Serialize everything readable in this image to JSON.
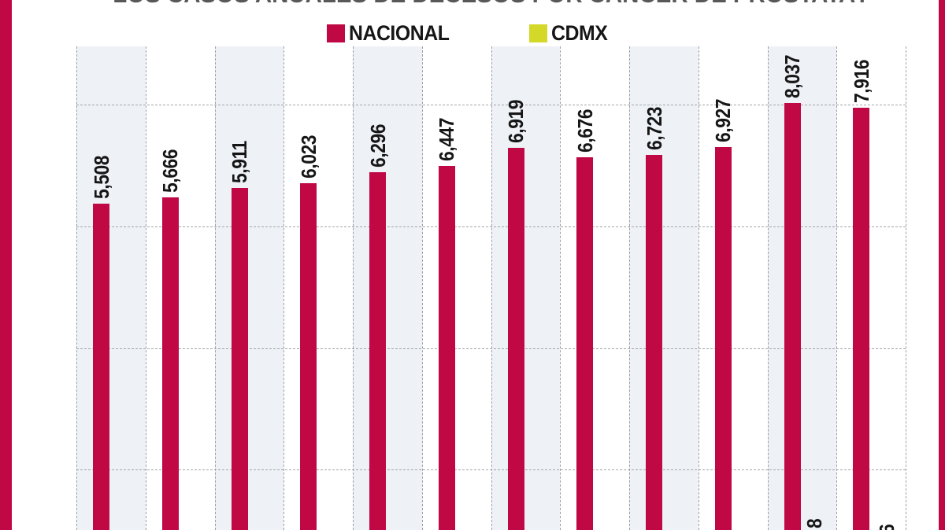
{
  "title": "LOS CASOS ANUALES DE DECESOS POR CÁNCER DE PRÓSTATA?",
  "legend": {
    "items": [
      {
        "label": "NACIONAL",
        "color": "#c00845"
      },
      {
        "label": "CDMX",
        "color": "#d4d829"
      }
    ]
  },
  "colors": {
    "nacional_bar": "#c00845",
    "cdmx_swatch": "#d4d829",
    "band_shade": "#eef1f6",
    "side_border": "#c00845",
    "title_text": "#58585b",
    "label_text": "#161616"
  },
  "chart_data": {
    "type": "bar",
    "title": "LOS CASOS ANUALES DE DECESOS POR CÁNCER DE PRÓSTATA?",
    "legend_position": "top",
    "grid": "dashed",
    "x_axis_labels_visible": false,
    "baseline_cut_off_below_view": true,
    "series": [
      {
        "name": "NACIONAL",
        "color": "#c00845",
        "values": [
          5508,
          5666,
          5911,
          6023,
          6296,
          6447,
          6919,
          6676,
          6723,
          6927,
          8037,
          7916
        ],
        "labels": [
          "5,508",
          "5,666",
          "5,911",
          "6,023",
          "6,296",
          "6,447",
          "6,919",
          "6,676",
          "6,723",
          "6,927",
          "8,037",
          "7,916"
        ]
      },
      {
        "name": "CDMX",
        "color": "#d4d829",
        "values": [],
        "visible_label_fragments": [
          {
            "bar_index": 10,
            "text": "8"
          },
          {
            "bar_index": 11,
            "text": "6"
          }
        ]
      }
    ]
  }
}
